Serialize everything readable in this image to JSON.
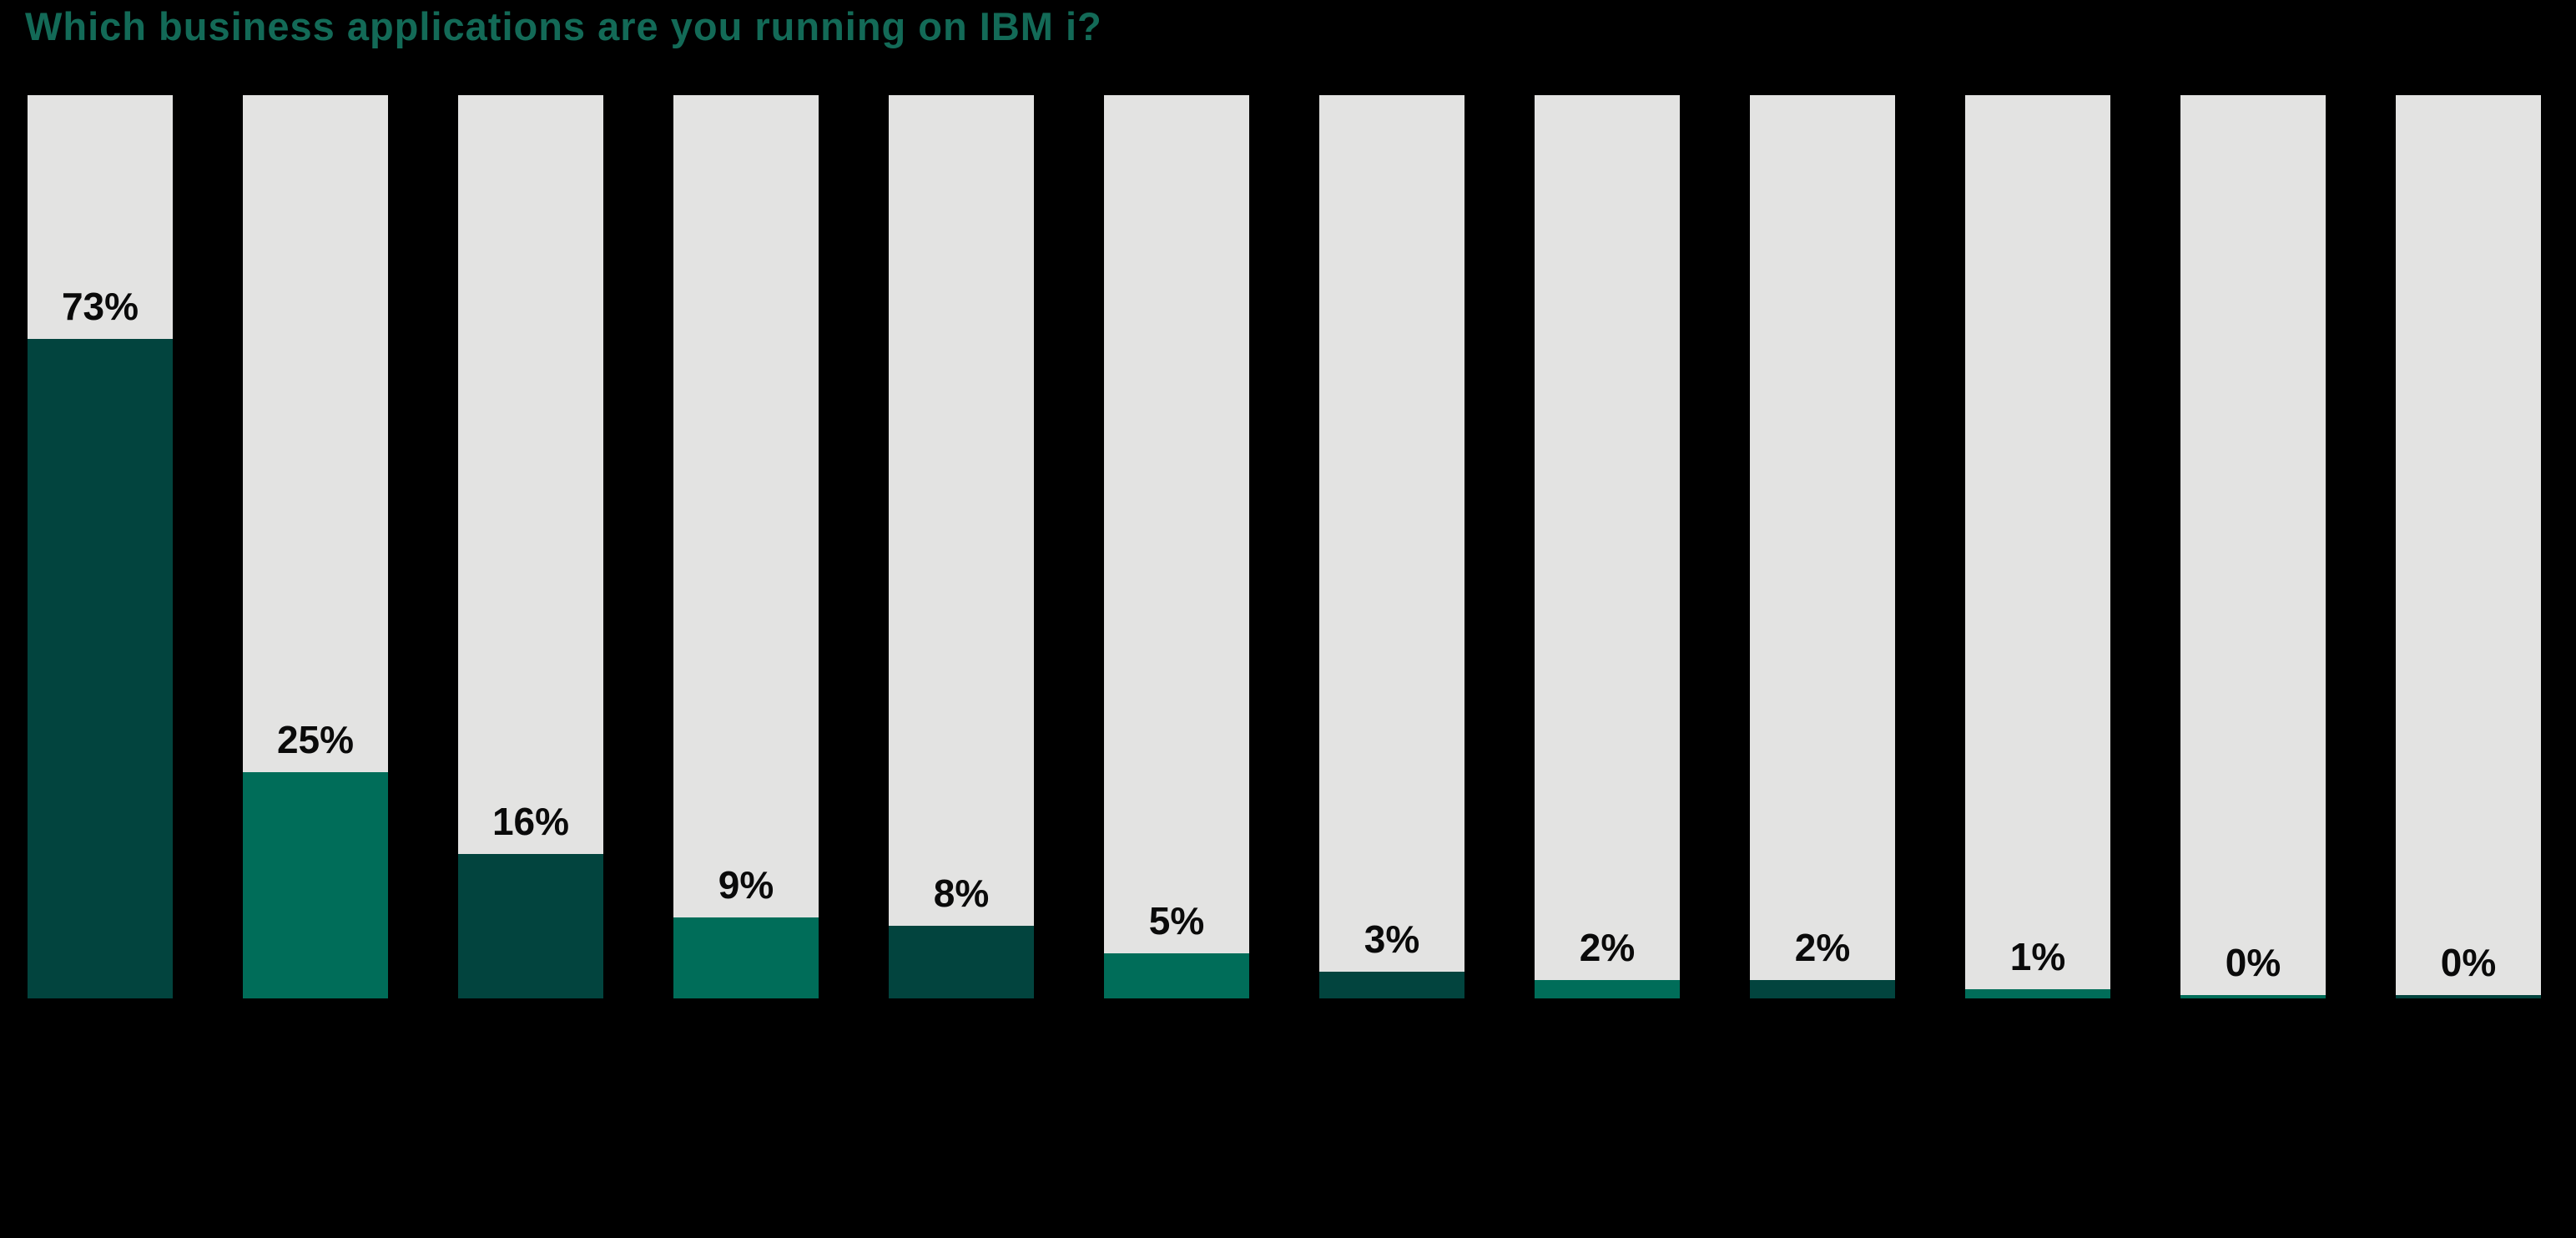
{
  "title": "Which business applications are you running on IBM i?",
  "colors": {
    "title_green": "#136a57",
    "bar_dark_teal": "#02443e",
    "bar_green": "#006d59",
    "track_gray": "#e3e3e2",
    "label_black": "#0a0a0a",
    "background": "#000000"
  },
  "chart_data": {
    "type": "bar",
    "title": "Which business applications are you running on IBM i?",
    "values": [
      73,
      25,
      16,
      9,
      8,
      5,
      3,
      2,
      2,
      1,
      0,
      0
    ],
    "value_labels": [
      "73%",
      "25%",
      "16%",
      "9%",
      "8%",
      "5%",
      "3%",
      "2%",
      "2%",
      "1%",
      "0%",
      "0%"
    ],
    "bar_color_pattern": [
      "dark",
      "green",
      "dark",
      "green",
      "dark",
      "green",
      "dark",
      "green",
      "dark",
      "green",
      "green",
      "dark"
    ],
    "ylim": [
      0,
      100
    ],
    "bar_count": 12,
    "categories_visible": false,
    "axes_visible": false,
    "grid": false,
    "legend": "none",
    "track_background": "full-height light gray columns behind each bar",
    "value_label_position": "above fill top, inside gray track, centered"
  }
}
